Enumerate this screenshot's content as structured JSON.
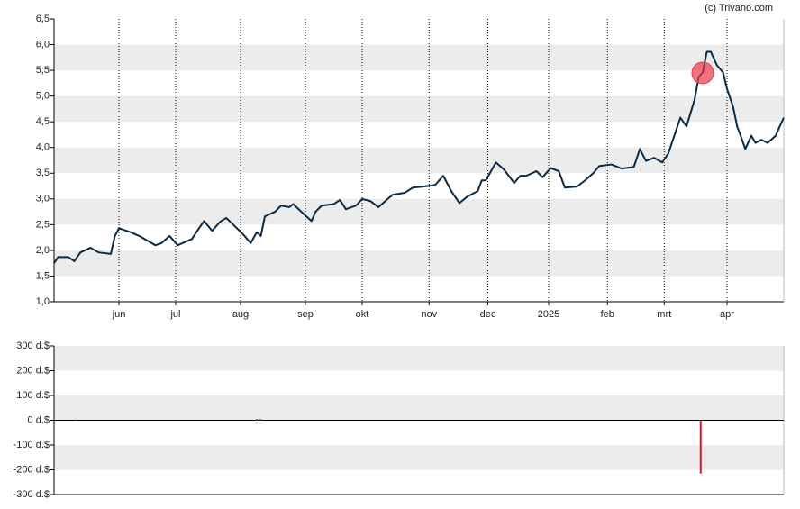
{
  "credit": "(c) Trivano.com",
  "chart_data": [
    {
      "type": "line",
      "color": "#0d2a45",
      "x": [
        0,
        2,
        7,
        10,
        13,
        18,
        22,
        28,
        30,
        32,
        38,
        42,
        50,
        53,
        57,
        61,
        68,
        71,
        74,
        78,
        82,
        85,
        91,
        94,
        97,
        100,
        102,
        104,
        109,
        112,
        116,
        118,
        122,
        127,
        129,
        132,
        138,
        141,
        144,
        149,
        152,
        156,
        160,
        164,
        167,
        173,
        177,
        182,
        188,
        192,
        196,
        200,
        204,
        209,
        211,
        213,
        218,
        222,
        227,
        230,
        233,
        238,
        241,
        245,
        249,
        252,
        258,
        262,
        266,
        269,
        275,
        280,
        286,
        289,
        292,
        296,
        300,
        303,
        306,
        309,
        312,
        316,
        318,
        320,
        322,
        324,
        327,
        330,
        332,
        335,
        337,
        339,
        341,
        344,
        346,
        349,
        352,
        356,
        358,
        360
      ],
      "values": [
        1.75,
        1.87,
        1.87,
        1.79,
        1.96,
        2.05,
        1.96,
        1.93,
        2.28,
        2.43,
        2.35,
        2.28,
        2.1,
        2.14,
        2.28,
        2.1,
        2.22,
        2.4,
        2.57,
        2.38,
        2.56,
        2.63,
        2.4,
        2.28,
        2.14,
        2.35,
        2.28,
        2.66,
        2.75,
        2.87,
        2.84,
        2.9,
        2.75,
        2.57,
        2.75,
        2.87,
        2.9,
        2.98,
        2.8,
        2.87,
        3.0,
        2.96,
        2.84,
        2.98,
        3.08,
        3.12,
        3.22,
        3.24,
        3.27,
        3.45,
        3.15,
        2.92,
        3.05,
        3.15,
        3.36,
        3.36,
        3.71,
        3.57,
        3.31,
        3.45,
        3.45,
        3.54,
        3.42,
        3.6,
        3.54,
        3.22,
        3.24,
        3.36,
        3.5,
        3.64,
        3.67,
        3.59,
        3.62,
        3.97,
        3.74,
        3.8,
        3.71,
        3.88,
        4.23,
        4.58,
        4.41,
        4.93,
        5.37,
        5.46,
        5.86,
        5.86,
        5.6,
        5.46,
        5.14,
        4.79,
        4.41,
        4.2,
        3.97,
        4.23,
        4.09,
        4.15,
        4.09,
        4.23,
        4.41,
        4.58
      ],
      "marker": {
        "x": 320,
        "y": 5.45,
        "color": "#e8394a"
      },
      "xlim": [
        0,
        360
      ],
      "xticks": [
        {
          "value": 32,
          "label": "jun"
        },
        {
          "value": 60,
          "label": "jul"
        },
        {
          "value": 92,
          "label": "aug"
        },
        {
          "value": 124,
          "label": "sep"
        },
        {
          "value": 152,
          "label": "okt"
        },
        {
          "value": 185,
          "label": "nov"
        },
        {
          "value": 214,
          "label": "dec"
        },
        {
          "value": 244,
          "label": "2025"
        },
        {
          "value": 273,
          "label": "feb"
        },
        {
          "value": 301,
          "label": "mrt"
        },
        {
          "value": 332,
          "label": "apr"
        }
      ],
      "ylim": [
        1.0,
        6.5
      ],
      "yticks": [
        {
          "value": 1.0,
          "label": "1,0"
        },
        {
          "value": 1.5,
          "label": "1,5"
        },
        {
          "value": 2.0,
          "label": "2,0"
        },
        {
          "value": 2.5,
          "label": "2,5"
        },
        {
          "value": 3.0,
          "label": "3,0"
        },
        {
          "value": 3.5,
          "label": "3,5"
        },
        {
          "value": 4.0,
          "label": "4,0"
        },
        {
          "value": 4.5,
          "label": "4,5"
        },
        {
          "value": 5.0,
          "label": "5,0"
        },
        {
          "value": 5.5,
          "label": "5,5"
        },
        {
          "value": 6.0,
          "label": "6,0"
        },
        {
          "value": 6.5,
          "label": "6,5"
        }
      ],
      "bands": true,
      "grid_x": true
    },
    {
      "type": "bar",
      "color_up": "#2e8b57",
      "color_down": "#e0102a",
      "x": [
        11,
        100,
        102,
        319
      ],
      "values": [
        3,
        5,
        5,
        -215
      ],
      "xlim": [
        0,
        360
      ],
      "ylim": [
        -300,
        300
      ],
      "yticks": [
        {
          "value": -300,
          "label": "-300 d.$"
        },
        {
          "value": -200,
          "label": "-200 d.$"
        },
        {
          "value": -100,
          "label": "-100 d.$"
        },
        {
          "value": 0,
          "label": "0 d.$"
        },
        {
          "value": 100,
          "label": "100 d.$"
        },
        {
          "value": 200,
          "label": "200 d.$"
        },
        {
          "value": 300,
          "label": "300 d.$"
        }
      ],
      "bands": true,
      "zero_line": true
    }
  ]
}
